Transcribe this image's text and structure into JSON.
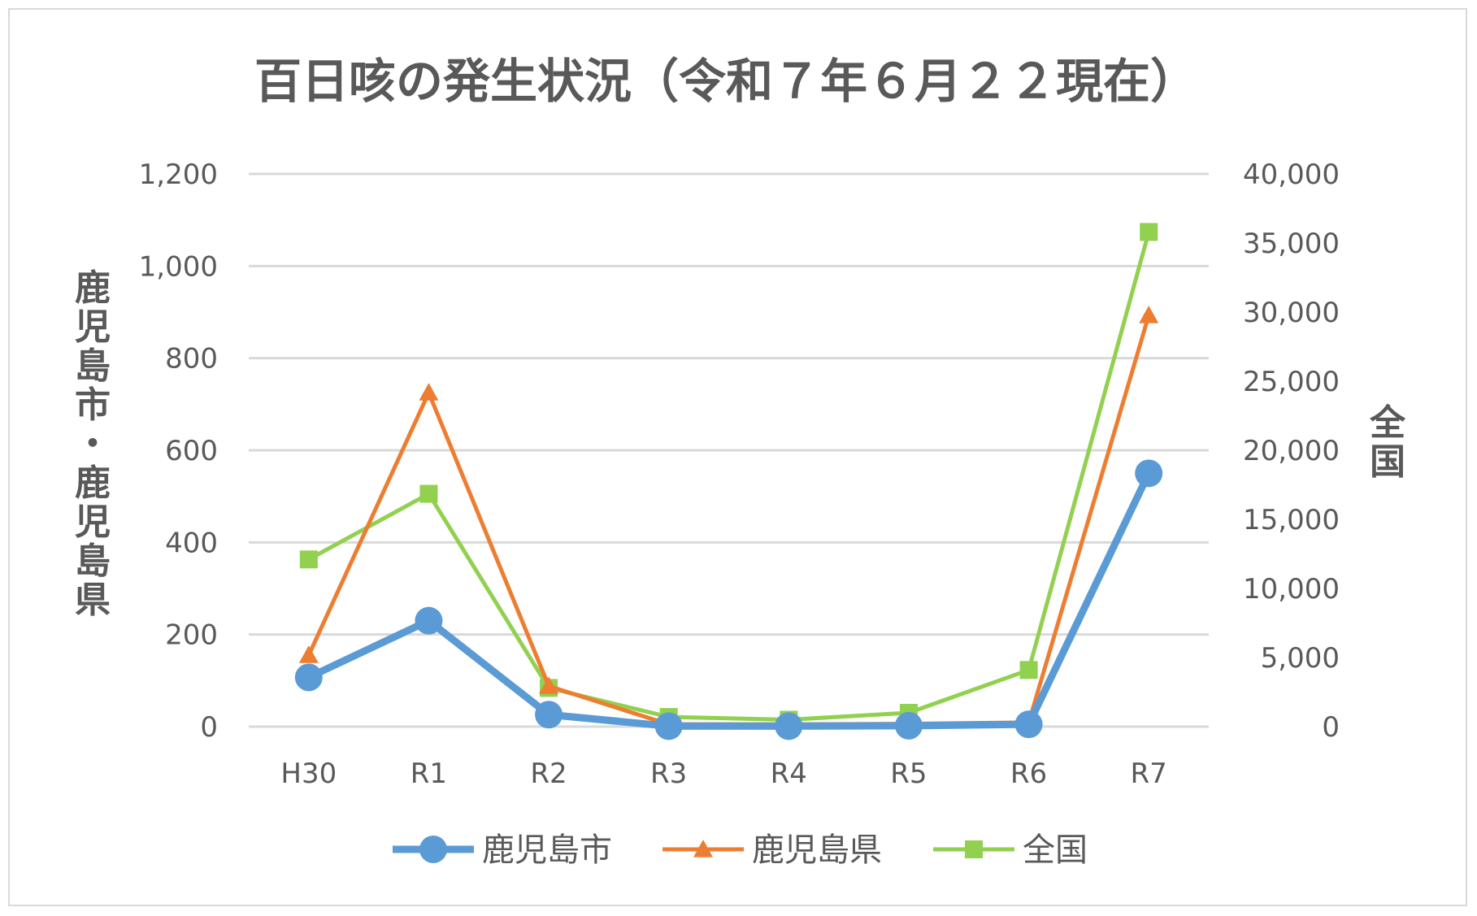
{
  "chart_data": {
    "type": "line",
    "title": "百日咳の発生状況（令和７年６月２２現在）",
    "categories": [
      "H30",
      "R1",
      "R2",
      "R3",
      "R4",
      "R5",
      "R6",
      "R7"
    ],
    "y_left_title": "鹿児島市・鹿児島県",
    "y_right_title": "全国",
    "y_left_lim": [
      0,
      1200
    ],
    "y_right_lim": [
      0,
      40000
    ],
    "y_left_ticks": [
      "0",
      "200",
      "400",
      "600",
      "800",
      "1,000",
      "1,200"
    ],
    "y_right_ticks": [
      "0",
      "5,000",
      "10,000",
      "15,000",
      "20,000",
      "25,000",
      "30,000",
      "35,000",
      "40,000"
    ],
    "grid": true,
    "legend_position": "bottom",
    "series": [
      {
        "name": "鹿児島市",
        "axis": "left",
        "marker": "circle",
        "color": "#5b9bd5",
        "values": [
          107,
          230,
          26,
          1,
          1,
          2,
          5,
          550
        ]
      },
      {
        "name": "鹿児島県",
        "axis": "left",
        "marker": "triangle",
        "color": "#ed7d31",
        "values": [
          155,
          725,
          88,
          5,
          5,
          6,
          9,
          893
        ]
      },
      {
        "name": "全国",
        "axis": "right",
        "marker": "square",
        "color": "#92d050",
        "values": [
          12100,
          16850,
          2800,
          700,
          500,
          1000,
          4100,
          35800
        ]
      }
    ]
  }
}
